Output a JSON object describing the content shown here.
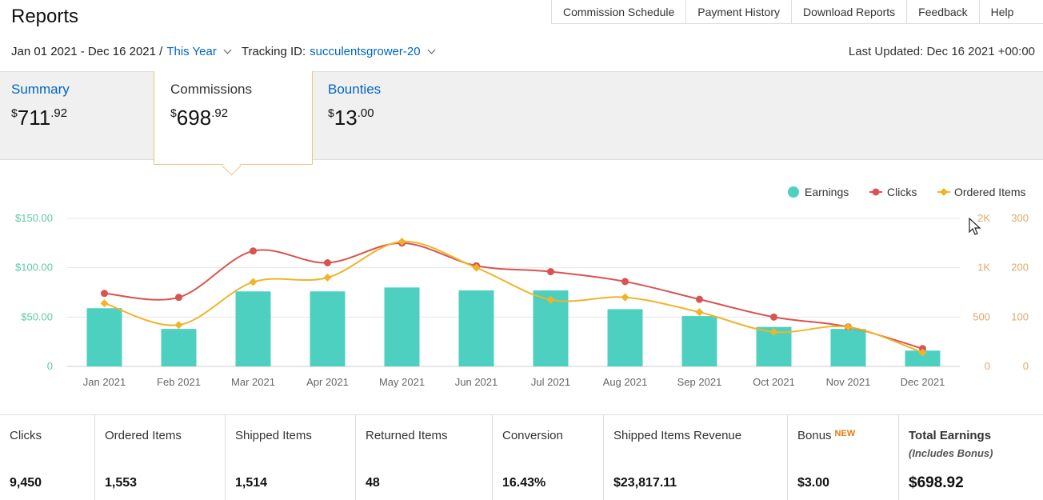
{
  "page": {
    "title": "Reports"
  },
  "topnav": [
    "Commission Schedule",
    "Payment History",
    "Download Reports",
    "Feedback",
    "Help"
  ],
  "filters": {
    "date_range": "Jan 01 2021 - Dec 16 2021 /",
    "period": "This Year",
    "tracking_label": "Tracking ID:",
    "tracking_id": "succulentsgrower-20",
    "last_updated": "Last Updated: Dec 16 2021 +00:00"
  },
  "tabs": [
    {
      "label": "Summary",
      "currency": "$",
      "whole": "711",
      "cents": ".92"
    },
    {
      "label": "Commissions",
      "currency": "$",
      "whole": "698",
      "cents": ".92",
      "active": true
    },
    {
      "label": "Bounties",
      "currency": "$",
      "whole": "13",
      "cents": ".00"
    }
  ],
  "chart_data": {
    "type": "bar",
    "categories": [
      "Jan 2021",
      "Feb 2021",
      "Mar 2021",
      "Apr 2021",
      "May 2021",
      "Jun 2021",
      "Jul 2021",
      "Aug 2021",
      "Sep 2021",
      "Oct 2021",
      "Nov 2021",
      "Dec 2021"
    ],
    "legend": [
      "Earnings",
      "Clicks",
      "Ordered Items"
    ],
    "legend_position": "top-right",
    "series": [
      {
        "name": "Earnings",
        "axis": "left",
        "color": "#4dd0c0",
        "values": [
          59,
          38,
          76,
          76,
          80,
          77,
          77,
          58,
          51,
          40,
          38,
          16
        ]
      },
      {
        "name": "Clicks",
        "axis": "right-1",
        "color": "#d9534f",
        "values": [
          740,
          700,
          1170,
          1050,
          1250,
          1020,
          960,
          860,
          680,
          500,
          400,
          180
        ]
      },
      {
        "name": "Ordered Items",
        "axis": "right-2",
        "color": "#f0b429",
        "values": [
          128,
          84,
          171,
          180,
          253,
          200,
          135,
          140,
          110,
          70,
          80,
          28
        ]
      }
    ],
    "y_left": {
      "ticks": [
        "0",
        "$50.00",
        "$100.00",
        "$150.00"
      ],
      "range": [
        0,
        150
      ]
    },
    "y_right1": {
      "ticks": [
        "0",
        "500",
        "1K",
        "2K"
      ],
      "range": [
        0,
        1500
      ]
    },
    "y_right2": {
      "ticks": [
        "0",
        "100",
        "200",
        "300"
      ],
      "range": [
        0,
        300
      ]
    },
    "grid": true
  },
  "stats": [
    {
      "label": "Clicks",
      "value": "9,450"
    },
    {
      "label": "Ordered Items",
      "value": "1,553"
    },
    {
      "label": "Shipped Items",
      "value": "1,514"
    },
    {
      "label": "Returned Items",
      "value": "48"
    },
    {
      "label": "Conversion",
      "value": "16.43%"
    },
    {
      "label": "Shipped Items Revenue",
      "value": "$23,817.11"
    },
    {
      "label": "Bonus",
      "badge": "NEW",
      "value": "$3.00"
    },
    {
      "label": "Total Earnings",
      "sublabel": "(Includes Bonus)",
      "value": "$698.92"
    }
  ]
}
